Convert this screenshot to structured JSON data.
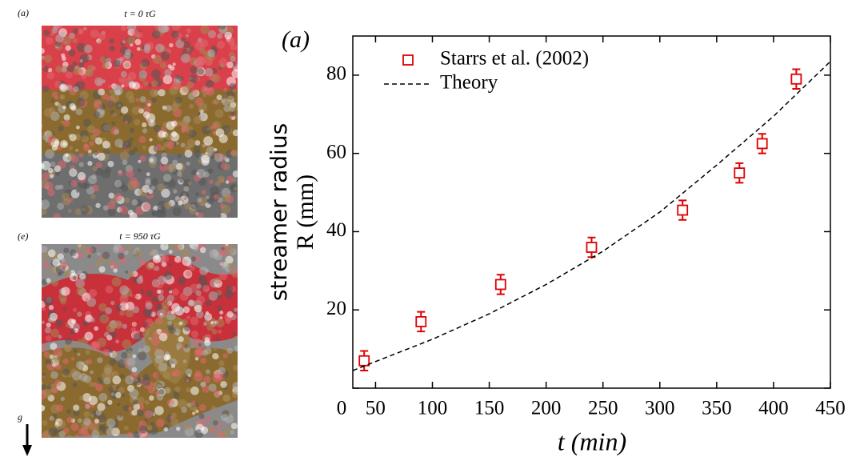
{
  "panels": [
    {
      "label": "(a)",
      "caption": "t = 0 τG"
    },
    {
      "label": "(e)",
      "caption": "t = 950 τG"
    }
  ],
  "gravity_label": "g",
  "chart_data": {
    "type": "scatter",
    "panel_label": "(a)",
    "xlabel": "t (min)",
    "ylabel": [
      "streamer radius",
      "R (mm)"
    ],
    "xlim": [
      30,
      450
    ],
    "xticks": [
      50,
      100,
      150,
      200,
      250,
      300,
      350,
      400,
      450
    ],
    "ylim": [
      0,
      90
    ],
    "yticks": [
      0,
      20,
      40,
      60,
      80
    ],
    "legend": "top-left",
    "series": [
      {
        "name": "Starrs et al. (2002)",
        "type": "scatter",
        "color": "#e00000",
        "x": [
          40,
          90,
          160,
          240,
          320,
          370,
          390,
          420
        ],
        "values": [
          7,
          17,
          26.5,
          36,
          45.5,
          55,
          62.5,
          79
        ],
        "errors": [
          2.5,
          2.5,
          2.5,
          2.5,
          2.5,
          2.5,
          2.5,
          2.5
        ]
      },
      {
        "name": "Theory",
        "type": "line",
        "color": "#000000",
        "x": [
          30,
          50,
          100,
          150,
          200,
          250,
          300,
          350,
          400,
          450
        ],
        "values": [
          4.5,
          6.8,
          12.5,
          19,
          26.5,
          35,
          45,
          57,
          69.5,
          83.5
        ]
      }
    ]
  }
}
